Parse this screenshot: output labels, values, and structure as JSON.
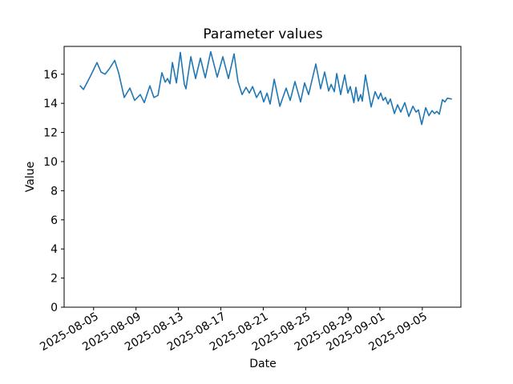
{
  "chart_data": {
    "type": "line",
    "title": "Parameter values",
    "xlabel": "Date",
    "ylabel": "Value",
    "grid": false,
    "legend": false,
    "line_color": "#1f77b4",
    "axis_color": "#000000",
    "x_unit": "days since 2025-08-01 00:00",
    "xlim": [
      1.22,
      38.64
    ],
    "ylim": [
      0,
      17.91
    ],
    "x_ticks": [
      {
        "t": 4,
        "label": "2025-08-05"
      },
      {
        "t": 8,
        "label": "2025-08-09"
      },
      {
        "t": 12,
        "label": "2025-08-13"
      },
      {
        "t": 16,
        "label": "2025-08-17"
      },
      {
        "t": 20,
        "label": "2025-08-21"
      },
      {
        "t": 24,
        "label": "2025-08-25"
      },
      {
        "t": 28,
        "label": "2025-08-29"
      },
      {
        "t": 31,
        "label": "2025-09-01"
      },
      {
        "t": 35,
        "label": "2025-09-05"
      }
    ],
    "y_ticks": [
      {
        "v": 0,
        "label": "0"
      },
      {
        "v": 2,
        "label": "2"
      },
      {
        "v": 4,
        "label": "4"
      },
      {
        "v": 6,
        "label": "6"
      },
      {
        "v": 8,
        "label": "8"
      },
      {
        "v": 10,
        "label": "10"
      },
      {
        "v": 12,
        "label": "12"
      },
      {
        "v": 14,
        "label": "14"
      },
      {
        "v": 16,
        "label": "16"
      }
    ],
    "series": [
      {
        "name": "Parameter",
        "points": [
          [
            2.74,
            15.2
          ],
          [
            3.04,
            14.95
          ],
          [
            3.72,
            15.9
          ],
          [
            4.32,
            16.8
          ],
          [
            4.7,
            16.15
          ],
          [
            5.08,
            16.0
          ],
          [
            5.46,
            16.35
          ],
          [
            5.99,
            16.95
          ],
          [
            6.36,
            16.1
          ],
          [
            6.89,
            14.4
          ],
          [
            7.42,
            15.05
          ],
          [
            7.87,
            14.2
          ],
          [
            8.4,
            14.6
          ],
          [
            8.78,
            14.05
          ],
          [
            9.31,
            15.2
          ],
          [
            9.69,
            14.4
          ],
          [
            10.07,
            14.55
          ],
          [
            10.44,
            16.1
          ],
          [
            10.75,
            15.45
          ],
          [
            10.97,
            15.7
          ],
          [
            11.2,
            15.35
          ],
          [
            11.43,
            16.8
          ],
          [
            11.81,
            15.4
          ],
          [
            12.18,
            17.5
          ],
          [
            12.56,
            15.3
          ],
          [
            12.71,
            15.0
          ],
          [
            13.17,
            17.2
          ],
          [
            13.62,
            15.7
          ],
          [
            14.07,
            17.1
          ],
          [
            14.53,
            15.75
          ],
          [
            15.05,
            17.55
          ],
          [
            15.66,
            15.8
          ],
          [
            16.19,
            17.2
          ],
          [
            16.72,
            15.7
          ],
          [
            17.25,
            17.4
          ],
          [
            17.62,
            15.5
          ],
          [
            18.0,
            14.6
          ],
          [
            18.38,
            15.1
          ],
          [
            18.68,
            14.7
          ],
          [
            18.99,
            15.15
          ],
          [
            19.36,
            14.4
          ],
          [
            19.74,
            14.85
          ],
          [
            20.04,
            14.1
          ],
          [
            20.35,
            14.7
          ],
          [
            20.65,
            13.95
          ],
          [
            21.03,
            15.65
          ],
          [
            21.56,
            13.8
          ],
          [
            22.16,
            15.05
          ],
          [
            22.54,
            14.2
          ],
          [
            22.99,
            15.5
          ],
          [
            23.52,
            14.1
          ],
          [
            23.9,
            15.4
          ],
          [
            24.28,
            14.6
          ],
          [
            24.96,
            16.7
          ],
          [
            25.41,
            15.0
          ],
          [
            25.79,
            16.15
          ],
          [
            26.17,
            14.85
          ],
          [
            26.4,
            15.3
          ],
          [
            26.7,
            14.8
          ],
          [
            26.93,
            16.05
          ],
          [
            27.3,
            14.6
          ],
          [
            27.68,
            15.95
          ],
          [
            27.98,
            14.7
          ],
          [
            28.21,
            15.15
          ],
          [
            28.55,
            14.05
          ],
          [
            28.74,
            15.1
          ],
          [
            28.96,
            14.15
          ],
          [
            29.19,
            14.6
          ],
          [
            29.34,
            14.15
          ],
          [
            29.64,
            15.95
          ],
          [
            30.17,
            13.75
          ],
          [
            30.55,
            14.8
          ],
          [
            30.85,
            14.3
          ],
          [
            31.08,
            14.7
          ],
          [
            31.31,
            14.2
          ],
          [
            31.53,
            14.4
          ],
          [
            31.76,
            13.95
          ],
          [
            31.99,
            14.3
          ],
          [
            32.37,
            13.3
          ],
          [
            32.67,
            13.9
          ],
          [
            32.97,
            13.4
          ],
          [
            33.35,
            14.05
          ],
          [
            33.73,
            13.1
          ],
          [
            34.11,
            13.8
          ],
          [
            34.41,
            13.4
          ],
          [
            34.63,
            13.55
          ],
          [
            34.94,
            12.55
          ],
          [
            35.32,
            13.7
          ],
          [
            35.62,
            13.15
          ],
          [
            35.92,
            13.5
          ],
          [
            36.15,
            13.3
          ],
          [
            36.37,
            13.45
          ],
          [
            36.6,
            13.25
          ],
          [
            36.9,
            14.25
          ],
          [
            37.13,
            14.1
          ],
          [
            37.36,
            14.35
          ],
          [
            37.74,
            14.3
          ]
        ]
      }
    ]
  }
}
